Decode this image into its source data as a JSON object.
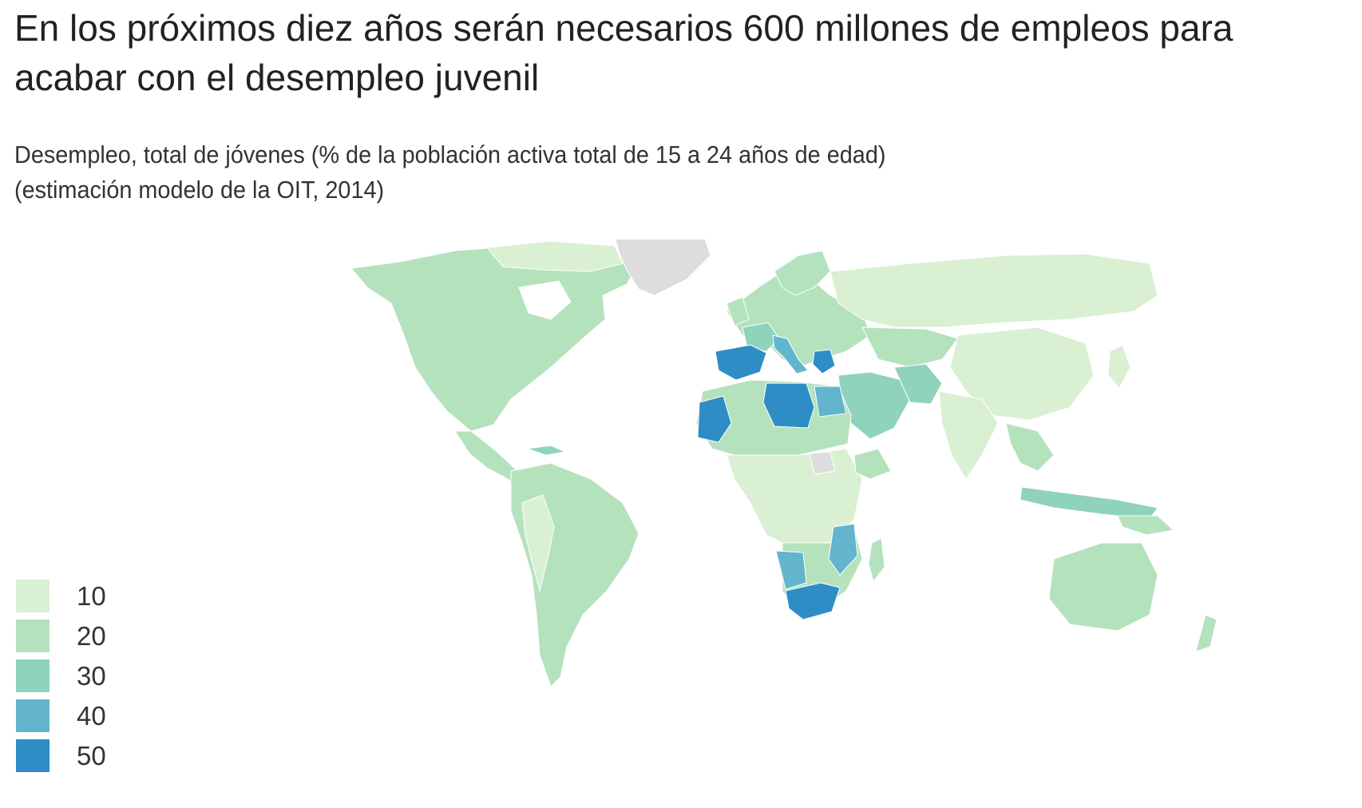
{
  "title": "En los próximos diez años serán necesarios 600 millones de empleos para acabar con el desempleo juvenil",
  "subtitle_line1": "Desempleo, total de jóvenes (% de la población activa total de 15 a 24 años de edad)",
  "subtitle_line2": "(estimación modelo de la OIT, 2014)",
  "legend": [
    {
      "label": "10",
      "color": "#d9f0d3"
    },
    {
      "label": "20",
      "color": "#b4e2bd"
    },
    {
      "label": "30",
      "color": "#8fd3bc"
    },
    {
      "label": "40",
      "color": "#62b5cc"
    },
    {
      "label": "50",
      "color": "#2f8dc6"
    }
  ],
  "colors": {
    "no_data": "#dddddd",
    "water": "#ffffff",
    "border": "#ffffff"
  },
  "map": {
    "projection": "world choropleth",
    "highlighted_regions": [
      {
        "region": "Spain",
        "bin": "50"
      },
      {
        "region": "Greece",
        "bin": "50"
      },
      {
        "region": "Libya",
        "bin": "50"
      },
      {
        "region": "South Africa",
        "bin": "50"
      },
      {
        "region": "Western Sahara",
        "bin": "50"
      },
      {
        "region": "Egypt",
        "bin": "40"
      },
      {
        "region": "Namibia",
        "bin": "40"
      },
      {
        "region": "Mozambique",
        "bin": "40"
      },
      {
        "region": "Greenland",
        "bin": "no_data"
      },
      {
        "region": "South Sudan",
        "bin": "no_data"
      }
    ]
  }
}
